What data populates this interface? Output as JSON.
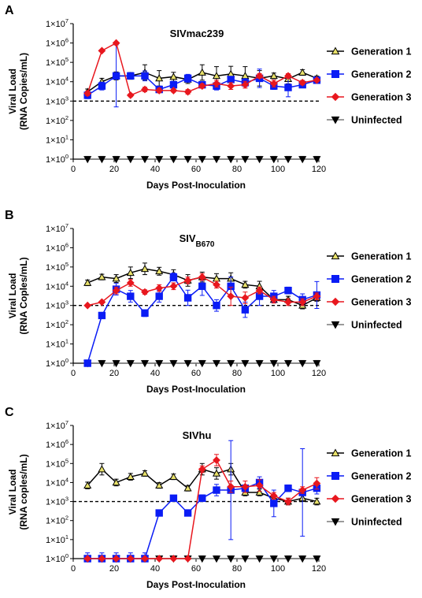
{
  "chart_data": [
    {
      "panel_label": "A",
      "type": "line",
      "title": "SIVmac239",
      "title_subscript": "",
      "xlabel": "Days Post-Inoculation",
      "ylabel": [
        "Viral Load",
        "(RNA Copies/mL)"
      ],
      "x_ticks": [
        0,
        20,
        40,
        60,
        80,
        100,
        120
      ],
      "y_ticks": [
        {
          "base": "1×10",
          "exp": "0"
        },
        {
          "base": "1×10",
          "exp": "1"
        },
        {
          "base": "1×10",
          "exp": "2"
        },
        {
          "base": "1×10",
          "exp": "3"
        },
        {
          "base": "1×10",
          "exp": "4"
        },
        {
          "base": "1×10",
          "exp": "5"
        },
        {
          "base": "1×10",
          "exp": "6"
        },
        {
          "base": "1×10",
          "exp": "7"
        }
      ],
      "y_scale": "log10",
      "xlim": [
        0,
        120
      ],
      "ylim": [
        1,
        10000000
      ],
      "threshold": 1000,
      "legend_position": "right",
      "series": [
        {
          "name": "Generation 1",
          "marker": "triangle-up",
          "color": "#e8e16a",
          "line_color": "#000000",
          "x": [
            7,
            14,
            21,
            28,
            35,
            42,
            49,
            56,
            63,
            70,
            77,
            84,
            91,
            98,
            105,
            112,
            119
          ],
          "y": [
            3000,
            10000,
            20000,
            20000,
            30000,
            15000,
            18000,
            13000,
            30000,
            20000,
            25000,
            20000,
            15000,
            20000,
            14000,
            30000,
            15000
          ],
          "err": [
            1.4,
            1.5,
            1.6,
            1.5,
            2.5,
            2.5,
            1.7,
            1.6,
            2.5,
            3.0,
            2.5,
            3.0,
            2.5,
            1.4,
            1.8,
            1.4,
            1.3
          ]
        },
        {
          "name": "Generation 2",
          "marker": "square",
          "color": "#0a1cf5",
          "line_color": "#0a1cf5",
          "x": [
            7,
            14,
            21,
            28,
            35,
            42,
            49,
            56,
            63,
            70,
            77,
            84,
            91,
            98,
            105,
            112,
            119
          ],
          "y": [
            2000,
            6000,
            20000,
            20000,
            20000,
            4000,
            7000,
            15000,
            7000,
            6000,
            13000,
            9000,
            15000,
            6000,
            5000,
            7000,
            12000
          ],
          "err": [
            1.5,
            1.6,
            40,
            1.2,
            1.8,
            1.4,
            1.5,
            1.6,
            1.4,
            1.6,
            1.4,
            1.6,
            3.0,
            1.5,
            3.0,
            1.3,
            1.3
          ]
        },
        {
          "name": "Generation 3",
          "marker": "diamond",
          "color": "#e8171e",
          "line_color": "#e8171e",
          "x": [
            7,
            14,
            21,
            28,
            35,
            42,
            49,
            56,
            63,
            70,
            77,
            84,
            91,
            98,
            105,
            112,
            119
          ],
          "y": [
            2500,
            400000,
            1000000,
            2000,
            4000,
            3500,
            3500,
            3000,
            6000,
            8000,
            6000,
            7000,
            20000,
            8000,
            20000,
            9000,
            12000
          ],
          "err": [
            1.3,
            1,
            1,
            1.2,
            1.3,
            1.3,
            1.2,
            1.3,
            1.3,
            1.5,
            1.5,
            1.5,
            1.3,
            1.5,
            1.3,
            1.3,
            1.2
          ]
        },
        {
          "name": "Uninfected",
          "marker": "triangle-down",
          "color": "#000000",
          "line_color": "#7a7a7a",
          "x": [
            7,
            14,
            21,
            28,
            35,
            42,
            49,
            56,
            63,
            70,
            77,
            84,
            91,
            98,
            105,
            112,
            119
          ],
          "y": [
            1,
            1,
            1,
            1,
            1,
            1,
            1,
            1,
            1,
            1,
            1,
            1,
            1,
            1,
            1,
            1,
            1
          ],
          "err": [
            1.4,
            1.4,
            1.4,
            1.4,
            1.4,
            1.4,
            1.4,
            1.4,
            1.4,
            1.4,
            1.4,
            1.4,
            1.4,
            1.4,
            1.4,
            1.4,
            1.4
          ]
        }
      ]
    },
    {
      "panel_label": "B",
      "type": "line",
      "title": "SIV",
      "title_subscript": "B670",
      "xlabel": "Days Post-Inoculation",
      "ylabel": [
        "Viral Load",
        "(RNA Coples/mL)"
      ],
      "x_ticks": [
        0,
        20,
        40,
        60,
        80,
        100,
        120
      ],
      "y_ticks": [
        {
          "base": "1×10",
          "exp": "0"
        },
        {
          "base": "1×10",
          "exp": "1"
        },
        {
          "base": "1×10",
          "exp": "2"
        },
        {
          "base": "1×10",
          "exp": "3"
        },
        {
          "base": "1×10",
          "exp": "4"
        },
        {
          "base": "1×10",
          "exp": "5"
        },
        {
          "base": "1×10",
          "exp": "6"
        },
        {
          "base": "1×10",
          "exp": "7"
        }
      ],
      "y_scale": "log10",
      "xlim": [
        0,
        120
      ],
      "ylim": [
        1,
        10000000
      ],
      "threshold": 1000,
      "legend_position": "right",
      "series": [
        {
          "name": "Generation 1",
          "marker": "triangle-up",
          "color": "#e8e16a",
          "line_color": "#000000",
          "x": [
            7,
            14,
            21,
            28,
            35,
            42,
            49,
            56,
            63,
            70,
            77,
            84,
            91,
            98,
            105,
            112,
            119
          ],
          "y": [
            15000,
            30000,
            25000,
            50000,
            80000,
            60000,
            40000,
            20000,
            30000,
            25000,
            25000,
            12000,
            10000,
            2000,
            2000,
            1000,
            2500
          ],
          "err": [
            1.4,
            1.4,
            1.6,
            2.0,
            2.0,
            1.6,
            1.8,
            2.0,
            1.8,
            1.8,
            2.0,
            1.5,
            1.8,
            1.4,
            1.5,
            1.5,
            1.5
          ]
        },
        {
          "name": "Generation 2",
          "marker": "square",
          "color": "#0a1cf5",
          "line_color": "#0a1cf5",
          "x": [
            7,
            14,
            21,
            28,
            35,
            42,
            49,
            56,
            63,
            70,
            77,
            84,
            91,
            98,
            105,
            112,
            119
          ],
          "y": [
            1,
            300,
            7000,
            3000,
            400,
            3000,
            30000,
            2500,
            10000,
            1000,
            10000,
            600,
            3000,
            3000,
            6000,
            2000,
            3500
          ],
          "err": [
            1,
            1,
            2.0,
            2.0,
            1.5,
            2.0,
            1.6,
            2.5,
            3.0,
            2.0,
            3.0,
            2.5,
            3.0,
            2.0,
            1.5,
            2.0,
            5.0
          ]
        },
        {
          "name": "Generation 3",
          "marker": "diamond",
          "color": "#e8171e",
          "line_color": "#e8171e",
          "x": [
            7,
            14,
            21,
            28,
            35,
            42,
            49,
            56,
            63,
            70,
            77,
            84,
            91,
            98,
            105,
            112,
            119
          ],
          "y": [
            1000,
            1500,
            6000,
            15000,
            5000,
            8000,
            10000,
            20000,
            30000,
            12000,
            3000,
            2500,
            6000,
            2000,
            1500,
            1500,
            3000
          ],
          "err": [
            1,
            1,
            1.5,
            1.5,
            1.3,
            1.5,
            1.5,
            1.5,
            1.5,
            1.5,
            3.0,
            2.0,
            1.5,
            1.5,
            1.5,
            1.5,
            1.5
          ]
        },
        {
          "name": "Uninfected",
          "marker": "triangle-down",
          "color": "#000000",
          "line_color": "#7a7a7a",
          "x": [
            7,
            14,
            21,
            28,
            35,
            42,
            49,
            56,
            63,
            70,
            77,
            84,
            91,
            98,
            105,
            112,
            119
          ],
          "y": [
            1,
            1,
            1,
            1,
            1,
            1,
            1,
            1,
            1,
            1,
            1,
            1,
            1,
            1,
            1,
            1,
            1
          ],
          "err": [
            1.4,
            1.4,
            1.4,
            1.4,
            1.4,
            1.4,
            1.4,
            1.4,
            1.4,
            1.4,
            1.4,
            1.4,
            1.4,
            1.4,
            1.4,
            1.4,
            1.4
          ]
        }
      ]
    },
    {
      "panel_label": "C",
      "type": "line",
      "title": "SIVhu",
      "title_subscript": "",
      "xlabel": "Days Post-Inoculation",
      "ylabel": [
        "Viral Load",
        "(RNA coples/mL)"
      ],
      "x_ticks": [
        0,
        20,
        40,
        60,
        80,
        100,
        120
      ],
      "y_ticks": [
        {
          "base": "1×10",
          "exp": "0"
        },
        {
          "base": "1×10",
          "exp": "1"
        },
        {
          "base": "1×10",
          "exp": "2"
        },
        {
          "base": "1×10",
          "exp": "3"
        },
        {
          "base": "1×10",
          "exp": "4"
        },
        {
          "base": "1×10",
          "exp": "5"
        },
        {
          "base": "1×10",
          "exp": "6"
        },
        {
          "base": "1×10",
          "exp": "7"
        }
      ],
      "y_scale": "log10",
      "xlim": [
        0,
        120
      ],
      "ylim": [
        1,
        10000000
      ],
      "threshold": 1000,
      "legend_position": "right",
      "series": [
        {
          "name": "Generation 1",
          "marker": "triangle-up",
          "color": "#e8e16a",
          "line_color": "#000000",
          "x": [
            7,
            14,
            21,
            28,
            35,
            42,
            49,
            56,
            63,
            70,
            77,
            84,
            91,
            98,
            105,
            112,
            119
          ],
          "y": [
            7000,
            50000,
            10000,
            20000,
            30000,
            7000,
            20000,
            5000,
            50000,
            30000,
            50000,
            3000,
            3000,
            1500,
            1000,
            1500,
            1000
          ],
          "err": [
            1.5,
            2.0,
            1.5,
            1.5,
            1.4,
            1.4,
            1.4,
            1.4,
            2.0,
            2.0,
            2.0,
            1.5,
            1.5,
            1.5,
            1.5,
            1.5,
            1.5
          ]
        },
        {
          "name": "Generation 2",
          "marker": "square",
          "color": "#0a1cf5",
          "line_color": "#0a1cf5",
          "x": [
            7,
            14,
            21,
            28,
            35,
            42,
            49,
            56,
            63,
            70,
            77,
            84,
            91,
            98,
            105,
            112,
            119
          ],
          "y": [
            1,
            1,
            1,
            1,
            1,
            250,
            1500,
            250,
            1500,
            4000,
            4000,
            5000,
            10000,
            800,
            5000,
            3000,
            5000
          ],
          "err": [
            2,
            2,
            2,
            2,
            2,
            1,
            1,
            1,
            1.5,
            2.0,
            400,
            1.5,
            2.0,
            5.0,
            1.5,
            200,
            2.0
          ]
        },
        {
          "name": "Generation 3",
          "marker": "diamond",
          "color": "#e8171e",
          "line_color": "#e8171e",
          "x": [
            7,
            14,
            21,
            28,
            35,
            42,
            49,
            56,
            63,
            70,
            77,
            84,
            91,
            98,
            105,
            112,
            119
          ],
          "y": [
            1,
            1,
            1,
            1,
            1,
            1,
            1,
            1,
            50000,
            150000,
            6000,
            6000,
            7000,
            2000,
            1000,
            4000,
            9000
          ],
          "err": [
            1,
            1,
            1,
            1,
            1,
            1,
            1,
            1,
            1.5,
            2.0,
            2.0,
            2.0,
            2.0,
            1.5,
            1.5,
            1.5,
            2.0
          ]
        },
        {
          "name": "Uninfected",
          "marker": "triangle-down",
          "color": "#000000",
          "line_color": "#7a7a7a",
          "x": [
            7,
            14,
            21,
            28,
            35,
            42,
            49,
            56,
            63,
            70,
            77,
            84,
            91,
            98,
            105,
            112,
            119
          ],
          "y": [
            1,
            1,
            1,
            1,
            1,
            1,
            1,
            1,
            1,
            1,
            1,
            1,
            1,
            1,
            1,
            1,
            1
          ],
          "err": [
            1.4,
            1.4,
            1.4,
            1.4,
            1.4,
            1.4,
            1.4,
            1.4,
            1.4,
            1.4,
            1.4,
            1.4,
            1.4,
            1.4,
            1.4,
            1.4,
            1.4
          ]
        }
      ]
    }
  ]
}
